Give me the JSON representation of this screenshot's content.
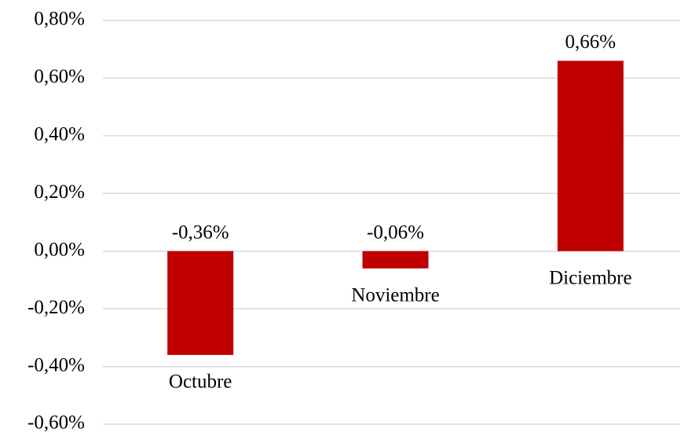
{
  "chart_data": {
    "type": "bar",
    "categories": [
      "Octubre",
      "Noviembre",
      "Diciembre"
    ],
    "values": [
      -0.36,
      -0.06,
      0.66
    ],
    "value_labels": [
      "-0,36%",
      "-0,06%",
      "0,66%"
    ],
    "color": "#c00000",
    "ylim": [
      -0.6,
      0.8
    ],
    "yticks": [
      {
        "value": -0.6,
        "label": "-0,60%"
      },
      {
        "value": -0.4,
        "label": "-0,40%"
      },
      {
        "value": -0.2,
        "label": "-0,20%"
      },
      {
        "value": 0,
        "label": "0,00%"
      },
      {
        "value": 0.2,
        "label": "0,20%"
      },
      {
        "value": 0.4,
        "label": "0,40%"
      },
      {
        "value": 0.6,
        "label": "0,60%"
      },
      {
        "value": 0.8,
        "label": "0,80%"
      }
    ],
    "grid": true
  }
}
